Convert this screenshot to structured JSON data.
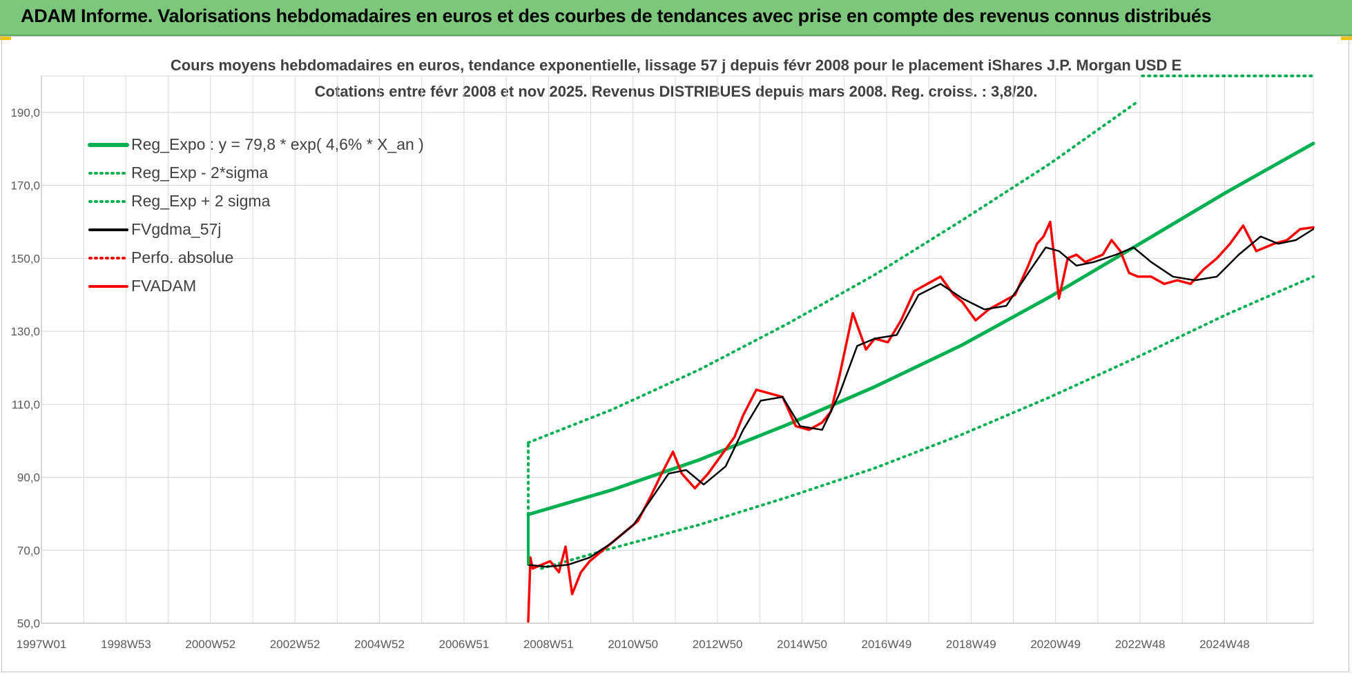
{
  "banner": {
    "title": "ADAM Informe. Valorisations hebdomadaires en euros et des courbes de tendances avec prise en compte des revenus connus distribués"
  },
  "colors": {
    "banner_bg": "#7cc77c",
    "green": "#00b050",
    "red": "#ff0000",
    "black": "#000000",
    "grid": "#d9d9d9"
  },
  "chart_data": {
    "type": "line",
    "title": "Cours moyens hebdomadaires en euros, tendance exponentielle, lissage 57 j depuis févr 2008 pour le placement iShares J.P. Morgan USD E",
    "subtitle": "Cotations entre févr 2008 et nov 2025. Revenus DISTRIBUES depuis mars 2008. Reg. croiss. : 3,8/20.",
    "x_tick_labels": [
      "1997W01",
      "1998W53",
      "2000W52",
      "2002W52",
      "2004W52",
      "2006W51",
      "2008W51",
      "2010W50",
      "2012W50",
      "2014W50",
      "2016W49",
      "2018W49",
      "2020W49",
      "2022W48",
      "2024W48"
    ],
    "xlim": [
      1997.0,
      2026.0
    ],
    "ylim": [
      50,
      200
    ],
    "y_ticks": [
      50,
      70,
      90,
      110,
      130,
      150,
      170,
      190
    ],
    "y_tick_labels": [
      "50,0",
      "70,0",
      "90,0",
      "110,0",
      "130,0",
      "150,0",
      "170,0",
      "190,0"
    ],
    "grid": true,
    "legend_position": "top-left",
    "legend": [
      {
        "key": "reg_expo",
        "label": "Reg_Expo : y = 79,8 * exp( 4,6% *  X_an )",
        "color": "#00b050",
        "style": "solid"
      },
      {
        "key": "reg_minus",
        "label": "Reg_Exp - 2*sigma",
        "color": "#00b050",
        "style": "dotted"
      },
      {
        "key": "reg_plus",
        "label": "Reg_Exp + 2 sigma",
        "color": "#00b050",
        "style": "dotted"
      },
      {
        "key": "fvgdma",
        "label": "FVgdma_57j",
        "color": "#000000",
        "style": "solid"
      },
      {
        "key": "perfo",
        "label": "Perfo. absolue",
        "color": "#ff0000",
        "style": "dotted"
      },
      {
        "key": "fvadam",
        "label": "FVADAM",
        "color": "#ff0000",
        "style": "solid"
      }
    ],
    "series": [
      {
        "name": "Reg_Expo : y = 79,8 * exp( 4,6% *  X_an )",
        "key": "reg_expo",
        "x": [
          2008.1,
          2010,
          2012,
          2014,
          2016,
          2018,
          2020,
          2022,
          2024,
          2026
        ],
        "y": [
          79.8,
          86.5,
          94.8,
          104.4,
          114.8,
          126.3,
          139.5,
          153.7,
          168.0,
          181.5
        ]
      },
      {
        "name": "Reg_Exp + 2 sigma",
        "key": "reg_plus",
        "x": [
          2008.1,
          2010,
          2012,
          2014,
          2016,
          2018,
          2020,
          2022
        ],
        "y": [
          99.5,
          108.5,
          119.5,
          132.0,
          145.5,
          160.5,
          176.0,
          193.0
        ]
      },
      {
        "name": "Reg_Exp - 2*sigma",
        "key": "reg_minus",
        "x": [
          2008.4,
          2010,
          2012,
          2014,
          2016,
          2018,
          2020,
          2022,
          2024,
          2026
        ],
        "y": [
          65.0,
          70.5,
          77.0,
          84.5,
          92.5,
          101.8,
          112.0,
          123.0,
          134.5,
          145.0
        ]
      },
      {
        "name": "FVADAM",
        "key": "fvadam",
        "x": [
          2008.1,
          2008.15,
          2008.2,
          2008.4,
          2008.6,
          2008.8,
          2008.95,
          2009.1,
          2009.3,
          2009.5,
          2009.8,
          2010.0,
          2010.3,
          2010.6,
          2010.9,
          2011.1,
          2011.4,
          2011.6,
          2011.9,
          2012.2,
          2012.5,
          2012.8,
          2013.0,
          2013.3,
          2013.6,
          2013.9,
          2014.2,
          2014.5,
          2014.8,
          2015.0,
          2015.2,
          2015.5,
          2015.8,
          2016.0,
          2016.3,
          2016.6,
          2016.9,
          2017.2,
          2017.5,
          2017.8,
          2018.0,
          2018.3,
          2018.6,
          2018.9,
          2019.2,
          2019.5,
          2019.7,
          2019.85,
          2020.0,
          2020.2,
          2020.4,
          2020.6,
          2020.8,
          2021.0,
          2021.2,
          2021.4,
          2021.6,
          2021.8,
          2022.0,
          2022.3,
          2022.6,
          2022.9,
          2023.2,
          2023.5,
          2023.8,
          2024.1,
          2024.4,
          2024.7,
          2024.9,
          2025.1,
          2025.4,
          2025.7,
          2026.0
        ],
        "y": [
          50.5,
          68.0,
          65.0,
          66.0,
          67.0,
          64.0,
          71.0,
          58.0,
          64.0,
          67.0,
          70.0,
          72.0,
          75.0,
          78.0,
          85.0,
          90.0,
          97.0,
          91.0,
          87.0,
          91.0,
          96.0,
          101.0,
          107.0,
          114.0,
          113.0,
          112.0,
          104.0,
          103.0,
          105.0,
          108.0,
          118.0,
          135.0,
          125.0,
          128.0,
          127.0,
          133.0,
          141.0,
          143.0,
          145.0,
          140.0,
          138.0,
          133.0,
          136.0,
          138.0,
          140.0,
          148.0,
          154.0,
          156.0,
          160.0,
          139.0,
          150.0,
          151.0,
          149.0,
          150.0,
          151.0,
          155.0,
          152.0,
          146.0,
          145.0,
          145.0,
          143.0,
          144.0,
          143.0,
          147.0,
          150.0,
          154.0,
          159.0,
          152.0,
          153.0,
          154.0,
          155.0,
          158.0,
          158.5
        ]
      },
      {
        "name": "FVgdma_57j",
        "key": "fvgdma",
        "x": [
          2008.1,
          2008.5,
          2009.0,
          2009.5,
          2010.0,
          2010.5,
          2010.9,
          2011.3,
          2011.7,
          2012.1,
          2012.6,
          2013.0,
          2013.4,
          2013.9,
          2014.3,
          2014.8,
          2015.2,
          2015.6,
          2016.0,
          2016.5,
          2017.0,
          2017.5,
          2018.0,
          2018.5,
          2019.0,
          2019.5,
          2019.9,
          2020.2,
          2020.6,
          2021.0,
          2021.5,
          2021.9,
          2022.3,
          2022.8,
          2023.3,
          2023.8,
          2024.3,
          2024.8,
          2025.2,
          2025.6,
          2026.0
        ],
        "y": [
          66.0,
          65.5,
          66.0,
          68.0,
          72.0,
          77.0,
          84.0,
          91.0,
          92.0,
          88.0,
          93.0,
          103.0,
          111.0,
          112.0,
          104.0,
          103.0,
          113.0,
          126.0,
          128.0,
          129.0,
          140.0,
          143.0,
          139.0,
          136.0,
          137.0,
          146.0,
          153.0,
          152.0,
          148.0,
          149.0,
          151.0,
          153.0,
          149.0,
          145.0,
          144.0,
          145.0,
          151.0,
          156.0,
          154.0,
          155.0,
          158.0
        ]
      }
    ]
  }
}
